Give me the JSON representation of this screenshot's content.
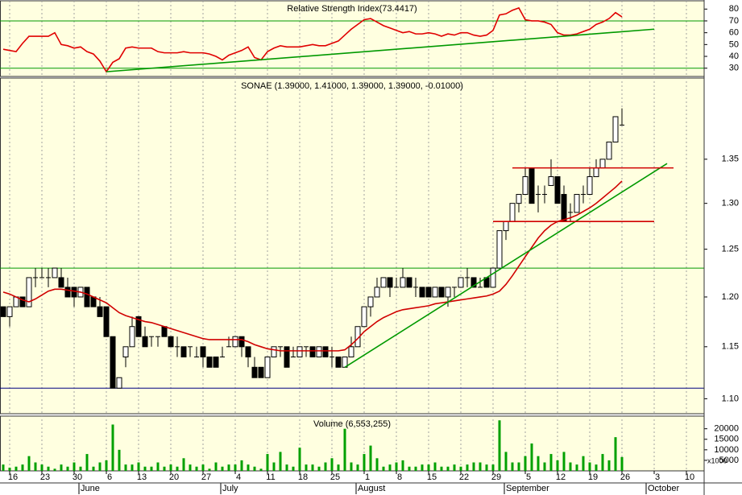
{
  "chart_data": [
    {
      "type": "line",
      "title": "Relative Strength Index(73.4417)",
      "color": "#e00000",
      "values": [
        46,
        45,
        44,
        51,
        57,
        57,
        57,
        57,
        60,
        50,
        49,
        47,
        48,
        44,
        42,
        36,
        27,
        35,
        38,
        47,
        48,
        47,
        47,
        47,
        44,
        43,
        43,
        43,
        44,
        43,
        43,
        43,
        42,
        40,
        37,
        41,
        43,
        45,
        48,
        39,
        37,
        44,
        47,
        49,
        48,
        48,
        48,
        49,
        50,
        49,
        49,
        51,
        53,
        58,
        63,
        67,
        71,
        72,
        69,
        66,
        64,
        62,
        60,
        61,
        59,
        59,
        60,
        59,
        57,
        59,
        58,
        60,
        60,
        58,
        57,
        58,
        62,
        75,
        76,
        79,
        81,
        71,
        70,
        70,
        69,
        67,
        60,
        58,
        58,
        59,
        61,
        63,
        67,
        69,
        72,
        77,
        73.44,
        null,
        null,
        null,
        null,
        null,
        null,
        null,
        null,
        null,
        null,
        null,
        null
      ],
      "ylim": [
        23,
        87
      ],
      "yticks": [
        30,
        40,
        50,
        60,
        70,
        80
      ],
      "hlines": [
        {
          "value": 70,
          "color": "#009900"
        },
        {
          "value": 30,
          "color": "#009900"
        }
      ],
      "lines": [
        {
          "color": "#009900",
          "x": [
            16,
            101
          ],
          "y": [
            27,
            63
          ]
        }
      ]
    },
    {
      "type": "candlestick",
      "title": "SONAE (1.39000, 1.41000, 1.39000, 1.39000, -0.01000)",
      "open": [
        1.19,
        1.18,
        1.19,
        1.2,
        1.19,
        1.22,
        1.22,
        1.22,
        1.22,
        1.22,
        1.21,
        1.21,
        1.2,
        1.21,
        1.2,
        1.19,
        1.19,
        1.16,
        1.11,
        1.14,
        1.15,
        1.18,
        1.16,
        1.16,
        1.16,
        1.17,
        1.16,
        1.15,
        1.15,
        1.15,
        1.14,
        1.15,
        1.14,
        1.14,
        1.14,
        1.15,
        1.15,
        1.16,
        1.15,
        1.13,
        1.13,
        1.12,
        1.14,
        1.15,
        1.15,
        1.14,
        1.14,
        1.15,
        1.15,
        1.14,
        1.15,
        1.14,
        1.14,
        1.13,
        1.14,
        1.15,
        1.17,
        1.19,
        1.2,
        1.21,
        1.22,
        1.21,
        1.21,
        1.22,
        1.21,
        1.21,
        1.21,
        1.2,
        1.21,
        1.2,
        1.21,
        1.21,
        1.22,
        1.22,
        1.21,
        1.22,
        1.21,
        1.23,
        1.27,
        1.28,
        1.3,
        1.31,
        1.34,
        1.31,
        1.31,
        1.32,
        1.33,
        1.31,
        1.29,
        1.29,
        1.31,
        1.31,
        1.33,
        1.34,
        1.35,
        1.37,
        1.39,
        null,
        null,
        null,
        null,
        null,
        null,
        null,
        null,
        null,
        null,
        null,
        null
      ],
      "high": [
        1.19,
        1.19,
        1.2,
        1.2,
        1.22,
        1.23,
        1.23,
        1.23,
        1.23,
        1.23,
        1.22,
        1.21,
        1.21,
        1.21,
        1.2,
        1.2,
        1.19,
        1.16,
        1.12,
        1.15,
        1.18,
        1.18,
        1.17,
        1.16,
        1.16,
        1.17,
        1.16,
        1.16,
        1.15,
        1.15,
        1.15,
        1.15,
        1.14,
        1.14,
        1.15,
        1.16,
        1.16,
        1.16,
        1.15,
        1.14,
        1.13,
        1.14,
        1.15,
        1.15,
        1.15,
        1.15,
        1.15,
        1.15,
        1.15,
        1.15,
        1.15,
        1.15,
        1.14,
        1.14,
        1.16,
        1.17,
        1.19,
        1.2,
        1.22,
        1.22,
        1.22,
        1.22,
        1.23,
        1.22,
        1.22,
        1.21,
        1.21,
        1.21,
        1.21,
        1.21,
        1.21,
        1.22,
        1.23,
        1.22,
        1.22,
        1.22,
        1.23,
        1.27,
        1.28,
        1.3,
        1.31,
        1.34,
        1.34,
        1.32,
        1.32,
        1.35,
        1.33,
        1.32,
        1.3,
        1.31,
        1.32,
        1.34,
        1.35,
        1.35,
        1.37,
        1.4,
        1.41,
        null,
        null,
        null,
        null,
        null,
        null,
        null,
        null,
        null,
        null,
        null,
        null
      ],
      "low": [
        1.18,
        1.17,
        1.19,
        1.19,
        1.19,
        1.21,
        1.22,
        1.21,
        1.22,
        1.21,
        1.2,
        1.19,
        1.2,
        1.19,
        1.19,
        1.18,
        1.16,
        1.11,
        1.11,
        1.13,
        1.15,
        1.16,
        1.15,
        1.15,
        1.15,
        1.16,
        1.15,
        1.14,
        1.14,
        1.14,
        1.14,
        1.13,
        1.13,
        1.13,
        1.14,
        1.15,
        1.15,
        1.14,
        1.13,
        1.12,
        1.12,
        1.12,
        1.14,
        1.14,
        1.13,
        1.14,
        1.14,
        1.14,
        1.14,
        1.14,
        1.14,
        1.13,
        1.13,
        1.13,
        1.14,
        1.15,
        1.17,
        1.18,
        1.2,
        1.21,
        1.2,
        1.21,
        1.21,
        1.21,
        1.2,
        1.2,
        1.2,
        1.2,
        1.2,
        1.19,
        1.2,
        1.21,
        1.21,
        1.21,
        1.21,
        1.21,
        1.21,
        1.23,
        1.26,
        1.28,
        1.29,
        1.31,
        1.3,
        1.29,
        1.3,
        1.32,
        1.3,
        1.28,
        1.28,
        1.29,
        1.3,
        1.31,
        1.33,
        1.34,
        1.35,
        1.37,
        1.39,
        null,
        null,
        null,
        null,
        null,
        null,
        null,
        null,
        null,
        null,
        null,
        null
      ],
      "close": [
        1.18,
        1.19,
        1.2,
        1.19,
        1.22,
        1.22,
        1.22,
        1.22,
        1.23,
        1.21,
        1.2,
        1.2,
        1.21,
        1.19,
        1.19,
        1.18,
        1.16,
        1.11,
        1.12,
        1.15,
        1.17,
        1.16,
        1.15,
        1.16,
        1.16,
        1.16,
        1.15,
        1.15,
        1.14,
        1.15,
        1.14,
        1.14,
        1.13,
        1.13,
        1.14,
        1.15,
        1.16,
        1.15,
        1.14,
        1.12,
        1.12,
        1.14,
        1.15,
        1.15,
        1.13,
        1.14,
        1.15,
        1.15,
        1.14,
        1.15,
        1.14,
        1.14,
        1.13,
        1.14,
        1.15,
        1.17,
        1.19,
        1.2,
        1.21,
        1.22,
        1.21,
        1.21,
        1.22,
        1.21,
        1.21,
        1.2,
        1.2,
        1.21,
        1.2,
        1.21,
        1.21,
        1.22,
        1.22,
        1.21,
        1.21,
        1.21,
        1.23,
        1.27,
        1.28,
        1.3,
        1.31,
        1.33,
        1.3,
        1.31,
        1.31,
        1.33,
        1.3,
        1.28,
        1.29,
        1.31,
        1.31,
        1.33,
        1.34,
        1.35,
        1.37,
        1.4,
        1.39,
        null,
        null,
        null,
        null,
        null,
        null,
        null,
        null,
        null,
        null,
        null,
        null
      ],
      "overlays": [
        {
          "color": "#d00000",
          "values": [
            1.205,
            1.203,
            1.2,
            1.197,
            1.195,
            1.198,
            1.202,
            1.206,
            1.208,
            1.208,
            1.207,
            1.206,
            1.205,
            1.203,
            1.2,
            1.197,
            1.194,
            1.189,
            1.184,
            1.181,
            1.179,
            1.177,
            1.175,
            1.174,
            1.172,
            1.17,
            1.168,
            1.166,
            1.164,
            1.162,
            1.16,
            1.158,
            1.157,
            1.157,
            1.157,
            1.157,
            1.157,
            1.157,
            1.155,
            1.152,
            1.15,
            1.148,
            1.147,
            1.146,
            1.146,
            1.146,
            1.146,
            1.146,
            1.146,
            1.146,
            1.146,
            1.146,
            1.146,
            1.147,
            1.152,
            1.158,
            1.165,
            1.17,
            1.175,
            1.179,
            1.182,
            1.185,
            1.187,
            1.188,
            1.189,
            1.19,
            1.191,
            1.193,
            1.194,
            1.195,
            1.196,
            1.197,
            1.198,
            1.199,
            1.2,
            1.201,
            1.203,
            1.206,
            1.213,
            1.222,
            1.232,
            1.242,
            1.252,
            1.262,
            1.27,
            1.276,
            1.28,
            1.282,
            1.284,
            1.287,
            1.291,
            1.295,
            1.3,
            1.306,
            1.312,
            1.318,
            1.325,
            null,
            null,
            null,
            null,
            null,
            null,
            null,
            null,
            null,
            null,
            null,
            null
          ]
        }
      ],
      "ylim": [
        1.086,
        1.447
      ],
      "log_scale": true,
      "yticks": [
        {
          "value": 1.1,
          "label": "1.10"
        },
        1.15,
        {
          "value": 1.2,
          "label": "1.20"
        },
        1.25,
        {
          "value": 1.3,
          "label": "1.30"
        },
        1.35
      ],
      "hlines": [
        {
          "value": 1.23,
          "color": "#009900"
        },
        {
          "value": 1.11,
          "color": "#000080"
        }
      ],
      "lines": [
        {
          "color": "#009900",
          "x": [
            53,
            103
          ],
          "y": [
            1.13,
            1.345
          ]
        },
        {
          "color": "#d00000",
          "x": [
            79,
            104
          ],
          "y": [
            1.34,
            1.34
          ]
        },
        {
          "color": "#d00000",
          "x": [
            76,
            101
          ],
          "y": [
            1.28,
            1.28
          ]
        }
      ]
    },
    {
      "type": "bar",
      "title": "Volume (6,553,255)",
      "color": "#00a000",
      "values": [
        3000,
        1500,
        2000,
        3000,
        7000,
        4000,
        3000,
        2000,
        1000,
        3000,
        2000,
        4000,
        2000,
        8000,
        2000,
        4000,
        5000,
        22000,
        10000,
        3000,
        3000,
        4000,
        2000,
        2000,
        4000,
        2000,
        3000,
        2000,
        6000,
        3000,
        2000,
        3000,
        1000,
        4000,
        2000,
        3000,
        3000,
        5000,
        3000,
        2000,
        1000,
        8000,
        4000,
        9000,
        3000,
        2000,
        11000,
        3000,
        3000,
        2000,
        4000,
        6000,
        3000,
        20000,
        4000,
        3000,
        8000,
        12000,
        6000,
        2000,
        3000,
        4000,
        5000,
        2000,
        2000,
        3000,
        3000,
        4000,
        2000,
        2000,
        3000,
        2000,
        3000,
        4000,
        4000,
        3000,
        3000,
        24000,
        9000,
        4000,
        4000,
        7000,
        13000,
        7000,
        4000,
        8000,
        5000,
        9000,
        4000,
        3000,
        7000,
        4000,
        3000,
        8000,
        5000,
        16000,
        6553,
        null,
        null,
        null,
        null,
        null,
        null,
        null,
        null,
        null,
        null,
        null,
        null
      ],
      "ylim": [
        0,
        26000
      ],
      "yticks": [
        5000,
        10000,
        15000,
        20000
      ],
      "y_unit_label": "x1000",
      "categories": [
        null,
        "16",
        null,
        null,
        null,
        null,
        "23",
        null,
        null,
        null,
        null,
        "30",
        null,
        null,
        null,
        null,
        "6",
        null,
        null,
        null,
        null,
        "13",
        null,
        null,
        null,
        null,
        "20",
        null,
        null,
        null,
        null,
        "27",
        null,
        null,
        null,
        null,
        "4",
        null,
        null,
        null,
        null,
        "11",
        null,
        null,
        null,
        null,
        "18",
        null,
        null,
        null,
        null,
        "25",
        null,
        null,
        null,
        null,
        "1",
        null,
        null,
        null,
        null,
        "8",
        null,
        null,
        null,
        null,
        "15",
        null,
        null,
        null,
        null,
        "22",
        null,
        null,
        null,
        null,
        "29",
        null,
        null,
        null,
        null,
        "5",
        null,
        null,
        null,
        null,
        "12",
        null,
        null,
        null,
        null,
        "19",
        null,
        null,
        null,
        null,
        "26",
        null,
        null,
        null,
        null,
        "3",
        null,
        null,
        null,
        null,
        "10",
        null,
        null
      ],
      "months": [
        null,
        null,
        null,
        null,
        null,
        null,
        null,
        null,
        null,
        null,
        null,
        null,
        "June",
        null,
        null,
        null,
        null,
        null,
        null,
        null,
        null,
        null,
        null,
        null,
        null,
        null,
        null,
        null,
        null,
        null,
        null,
        null,
        null,
        null,
        "July",
        null,
        null,
        null,
        null,
        null,
        null,
        null,
        null,
        null,
        null,
        null,
        null,
        null,
        null,
        null,
        null,
        null,
        null,
        null,
        null,
        "August",
        null,
        null,
        null,
        null,
        null,
        null,
        null,
        null,
        null,
        null,
        null,
        null,
        null,
        null,
        null,
        null,
        null,
        null,
        null,
        null,
        null,
        null,
        "September",
        null,
        null,
        null,
        null,
        null,
        null,
        null,
        null,
        null,
        null,
        null,
        null,
        null,
        null,
        null,
        null,
        null,
        null,
        null,
        null,
        null,
        "October",
        null,
        null,
        null,
        null,
        null,
        null,
        null,
        null
      ],
      "xgrid": true
    }
  ]
}
